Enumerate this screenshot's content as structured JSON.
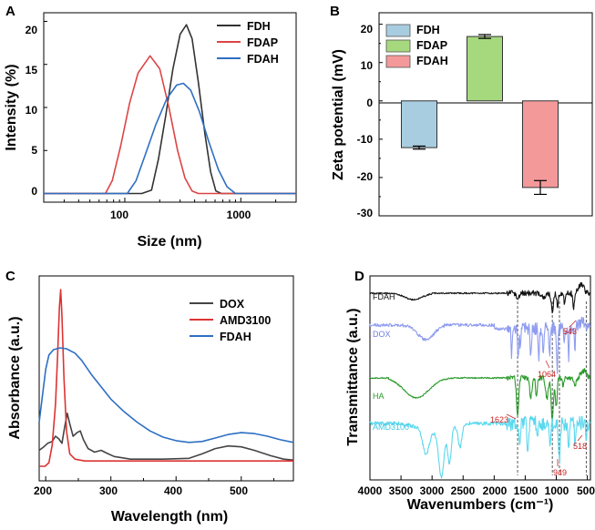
{
  "chart_data": [
    {
      "panel": "A",
      "type": "line",
      "xlabel": "Size (nm)",
      "ylabel": "Intensity (%)",
      "xscale": "log",
      "xlim": [
        20,
        3000
      ],
      "ylim": [
        -1,
        21
      ],
      "yticks": [
        0,
        5,
        10,
        15,
        20
      ],
      "xticks": [
        {
          "value": 100,
          "label": "100"
        },
        {
          "value": 1000,
          "label": "1000"
        }
      ],
      "legend": "top-right",
      "series": [
        {
          "name": "FDH",
          "color": "#333333",
          "points": [
            [
              20,
              0
            ],
            [
              140,
              0
            ],
            [
              170,
              0.4
            ],
            [
              195,
              4
            ],
            [
              225,
              9
            ],
            [
              260,
              14.5
            ],
            [
              300,
              18.5
            ],
            [
              340,
              19.6
            ],
            [
              380,
              18
            ],
            [
              430,
              13
            ],
            [
              490,
              7
            ],
            [
              550,
              2.5
            ],
            [
              610,
              0.3
            ],
            [
              680,
              0
            ],
            [
              3000,
              0
            ]
          ]
        },
        {
          "name": "FDAP",
          "color": "#dd4444",
          "points": [
            [
              20,
              0
            ],
            [
              68,
              0
            ],
            [
              78,
              1.5
            ],
            [
              92,
              5.5
            ],
            [
              110,
              10.5
            ],
            [
              130,
              14
            ],
            [
              165,
              16
            ],
            [
              200,
              14.5
            ],
            [
              240,
              10
            ],
            [
              285,
              5
            ],
            [
              330,
              1.8
            ],
            [
              380,
              0.3
            ],
            [
              430,
              0
            ],
            [
              3000,
              0
            ]
          ]
        },
        {
          "name": "FDAH",
          "color": "#2e6fc2",
          "points": [
            [
              20,
              0
            ],
            [
              105,
              0
            ],
            [
              125,
              1.5
            ],
            [
              150,
              4.5
            ],
            [
              185,
              8
            ],
            [
              230,
              11
            ],
            [
              280,
              12.6
            ],
            [
              320,
              12.8
            ],
            [
              370,
              12
            ],
            [
              440,
              9.5
            ],
            [
              530,
              6
            ],
            [
              640,
              2.8
            ],
            [
              760,
              0.8
            ],
            [
              900,
              0
            ],
            [
              3000,
              0
            ]
          ]
        }
      ]
    },
    {
      "panel": "B",
      "type": "bar",
      "ylabel": "Zeta potential (mV)",
      "ylim": [
        -30,
        23
      ],
      "yticks": [
        -30,
        -20,
        -10,
        0,
        10,
        20
      ],
      "categories": [
        "FDH",
        "FDAP",
        "FDAH"
      ],
      "values": [
        -12.2,
        16.8,
        -22.6
      ],
      "errors": [
        0.4,
        0.5,
        1.8
      ],
      "colors": [
        "#a9cde0",
        "#a6d97e",
        "#f4999a"
      ],
      "legend": "top-left"
    },
    {
      "panel": "C",
      "type": "line",
      "xlabel": "Wavelength (nm)",
      "ylabel": "Absorbance (a.u.)",
      "xlim": [
        190,
        580
      ],
      "xticks": [
        200,
        300,
        400,
        500
      ],
      "legend": "top-right",
      "series": [
        {
          "name": "DOX",
          "color": "#444444",
          "points": [
            [
              190,
              0.09
            ],
            [
              197,
              0.11
            ],
            [
              203,
              0.13
            ],
            [
              210,
              0.14
            ],
            [
              215,
              0.17
            ],
            [
              220,
              0.155
            ],
            [
              225,
              0.13
            ],
            [
              229,
              0.22
            ],
            [
              233,
              0.3
            ],
            [
              237,
              0.24
            ],
            [
              242,
              0.17
            ],
            [
              248,
              0.19
            ],
            [
              253,
              0.2
            ],
            [
              258,
              0.15
            ],
            [
              265,
              0.1
            ],
            [
              275,
              0.08
            ],
            [
              285,
              0.09
            ],
            [
              293,
              0.075
            ],
            [
              305,
              0.055
            ],
            [
              330,
              0.04
            ],
            [
              380,
              0.04
            ],
            [
              420,
              0.045
            ],
            [
              440,
              0.07
            ],
            [
              460,
              0.1
            ],
            [
              480,
              0.115
            ],
            [
              500,
              0.11
            ],
            [
              520,
              0.09
            ],
            [
              545,
              0.06
            ],
            [
              565,
              0.04
            ],
            [
              580,
              0.035
            ]
          ]
        },
        {
          "name": "AMD3100",
          "color": "#dd3333",
          "points": [
            [
              190,
              0.0
            ],
            [
              199,
              0.0
            ],
            [
              205,
              0.02
            ],
            [
              210,
              0.12
            ],
            [
              215,
              0.35
            ],
            [
              218,
              0.6
            ],
            [
              221,
              0.9
            ],
            [
              223,
              1.0
            ],
            [
              225,
              0.85
            ],
            [
              228,
              0.5
            ],
            [
              232,
              0.2
            ],
            [
              237,
              0.07
            ],
            [
              245,
              0.04
            ],
            [
              260,
              0.03
            ],
            [
              300,
              0.03
            ],
            [
              580,
              0.03
            ]
          ]
        },
        {
          "name": "FDAH",
          "color": "#2e6fc2",
          "points": [
            [
              190,
              0.25
            ],
            [
              195,
              0.4
            ],
            [
              200,
              0.55
            ],
            [
              205,
              0.63
            ],
            [
              212,
              0.66
            ],
            [
              222,
              0.67
            ],
            [
              232,
              0.665
            ],
            [
              245,
              0.64
            ],
            [
              255,
              0.6
            ],
            [
              270,
              0.52
            ],
            [
              285,
              0.45
            ],
            [
              300,
              0.38
            ],
            [
              320,
              0.31
            ],
            [
              340,
              0.25
            ],
            [
              360,
              0.2
            ],
            [
              380,
              0.165
            ],
            [
              400,
              0.145
            ],
            [
              420,
              0.135
            ],
            [
              440,
              0.14
            ],
            [
              460,
              0.16
            ],
            [
              480,
              0.18
            ],
            [
              500,
              0.19
            ],
            [
              520,
              0.185
            ],
            [
              540,
              0.17
            ],
            [
              560,
              0.15
            ],
            [
              580,
              0.135
            ]
          ]
        }
      ]
    },
    {
      "panel": "D",
      "type": "line",
      "xlabel": "Wavenumbers (cm⁻¹)",
      "ylabel": "Transmittance (a.u.)",
      "xlim": [
        4000,
        450
      ],
      "xticks": [
        4000,
        3500,
        3000,
        2500,
        2000,
        1500,
        1000,
        500
      ],
      "reference_lines": [
        1623,
        1064,
        949,
        518
      ],
      "annotations": [
        {
          "text": "543",
          "at": 543
        },
        {
          "text": "1064",
          "at": 1064
        },
        {
          "text": "1623",
          "at": 1623
        },
        {
          "text": "949",
          "at": 949
        },
        {
          "text": "518",
          "at": 518
        }
      ],
      "series": [
        {
          "name": "FDAH",
          "color": "#111111",
          "label_color": "#111111"
        },
        {
          "name": "DOX",
          "color": "#8f9cf0",
          "label_color": "#6f7fe0"
        },
        {
          "name": "HA",
          "color": "#2a9a2a",
          "label_color": "#2a9a2a"
        },
        {
          "name": "AMD3100",
          "color": "#59d8ee",
          "label_color": "#40c8e0"
        }
      ]
    }
  ],
  "panels": {
    "A": {
      "label": "A"
    },
    "B": {
      "label": "B"
    },
    "C": {
      "label": "C"
    },
    "D": {
      "label": "D"
    }
  },
  "ticks": {
    "a_x": [
      "100",
      "1000"
    ],
    "b_y": [
      "20",
      "10",
      "0",
      "-10",
      "-20",
      "-30"
    ],
    "c_x": [
      "200",
      "300",
      "400",
      "500"
    ],
    "d_x": [
      "4000",
      "3500",
      "3000",
      "2500",
      "2000",
      "1500",
      "1000",
      "500"
    ],
    "a_y": [
      "20",
      "15",
      "10",
      "5",
      "0"
    ]
  }
}
